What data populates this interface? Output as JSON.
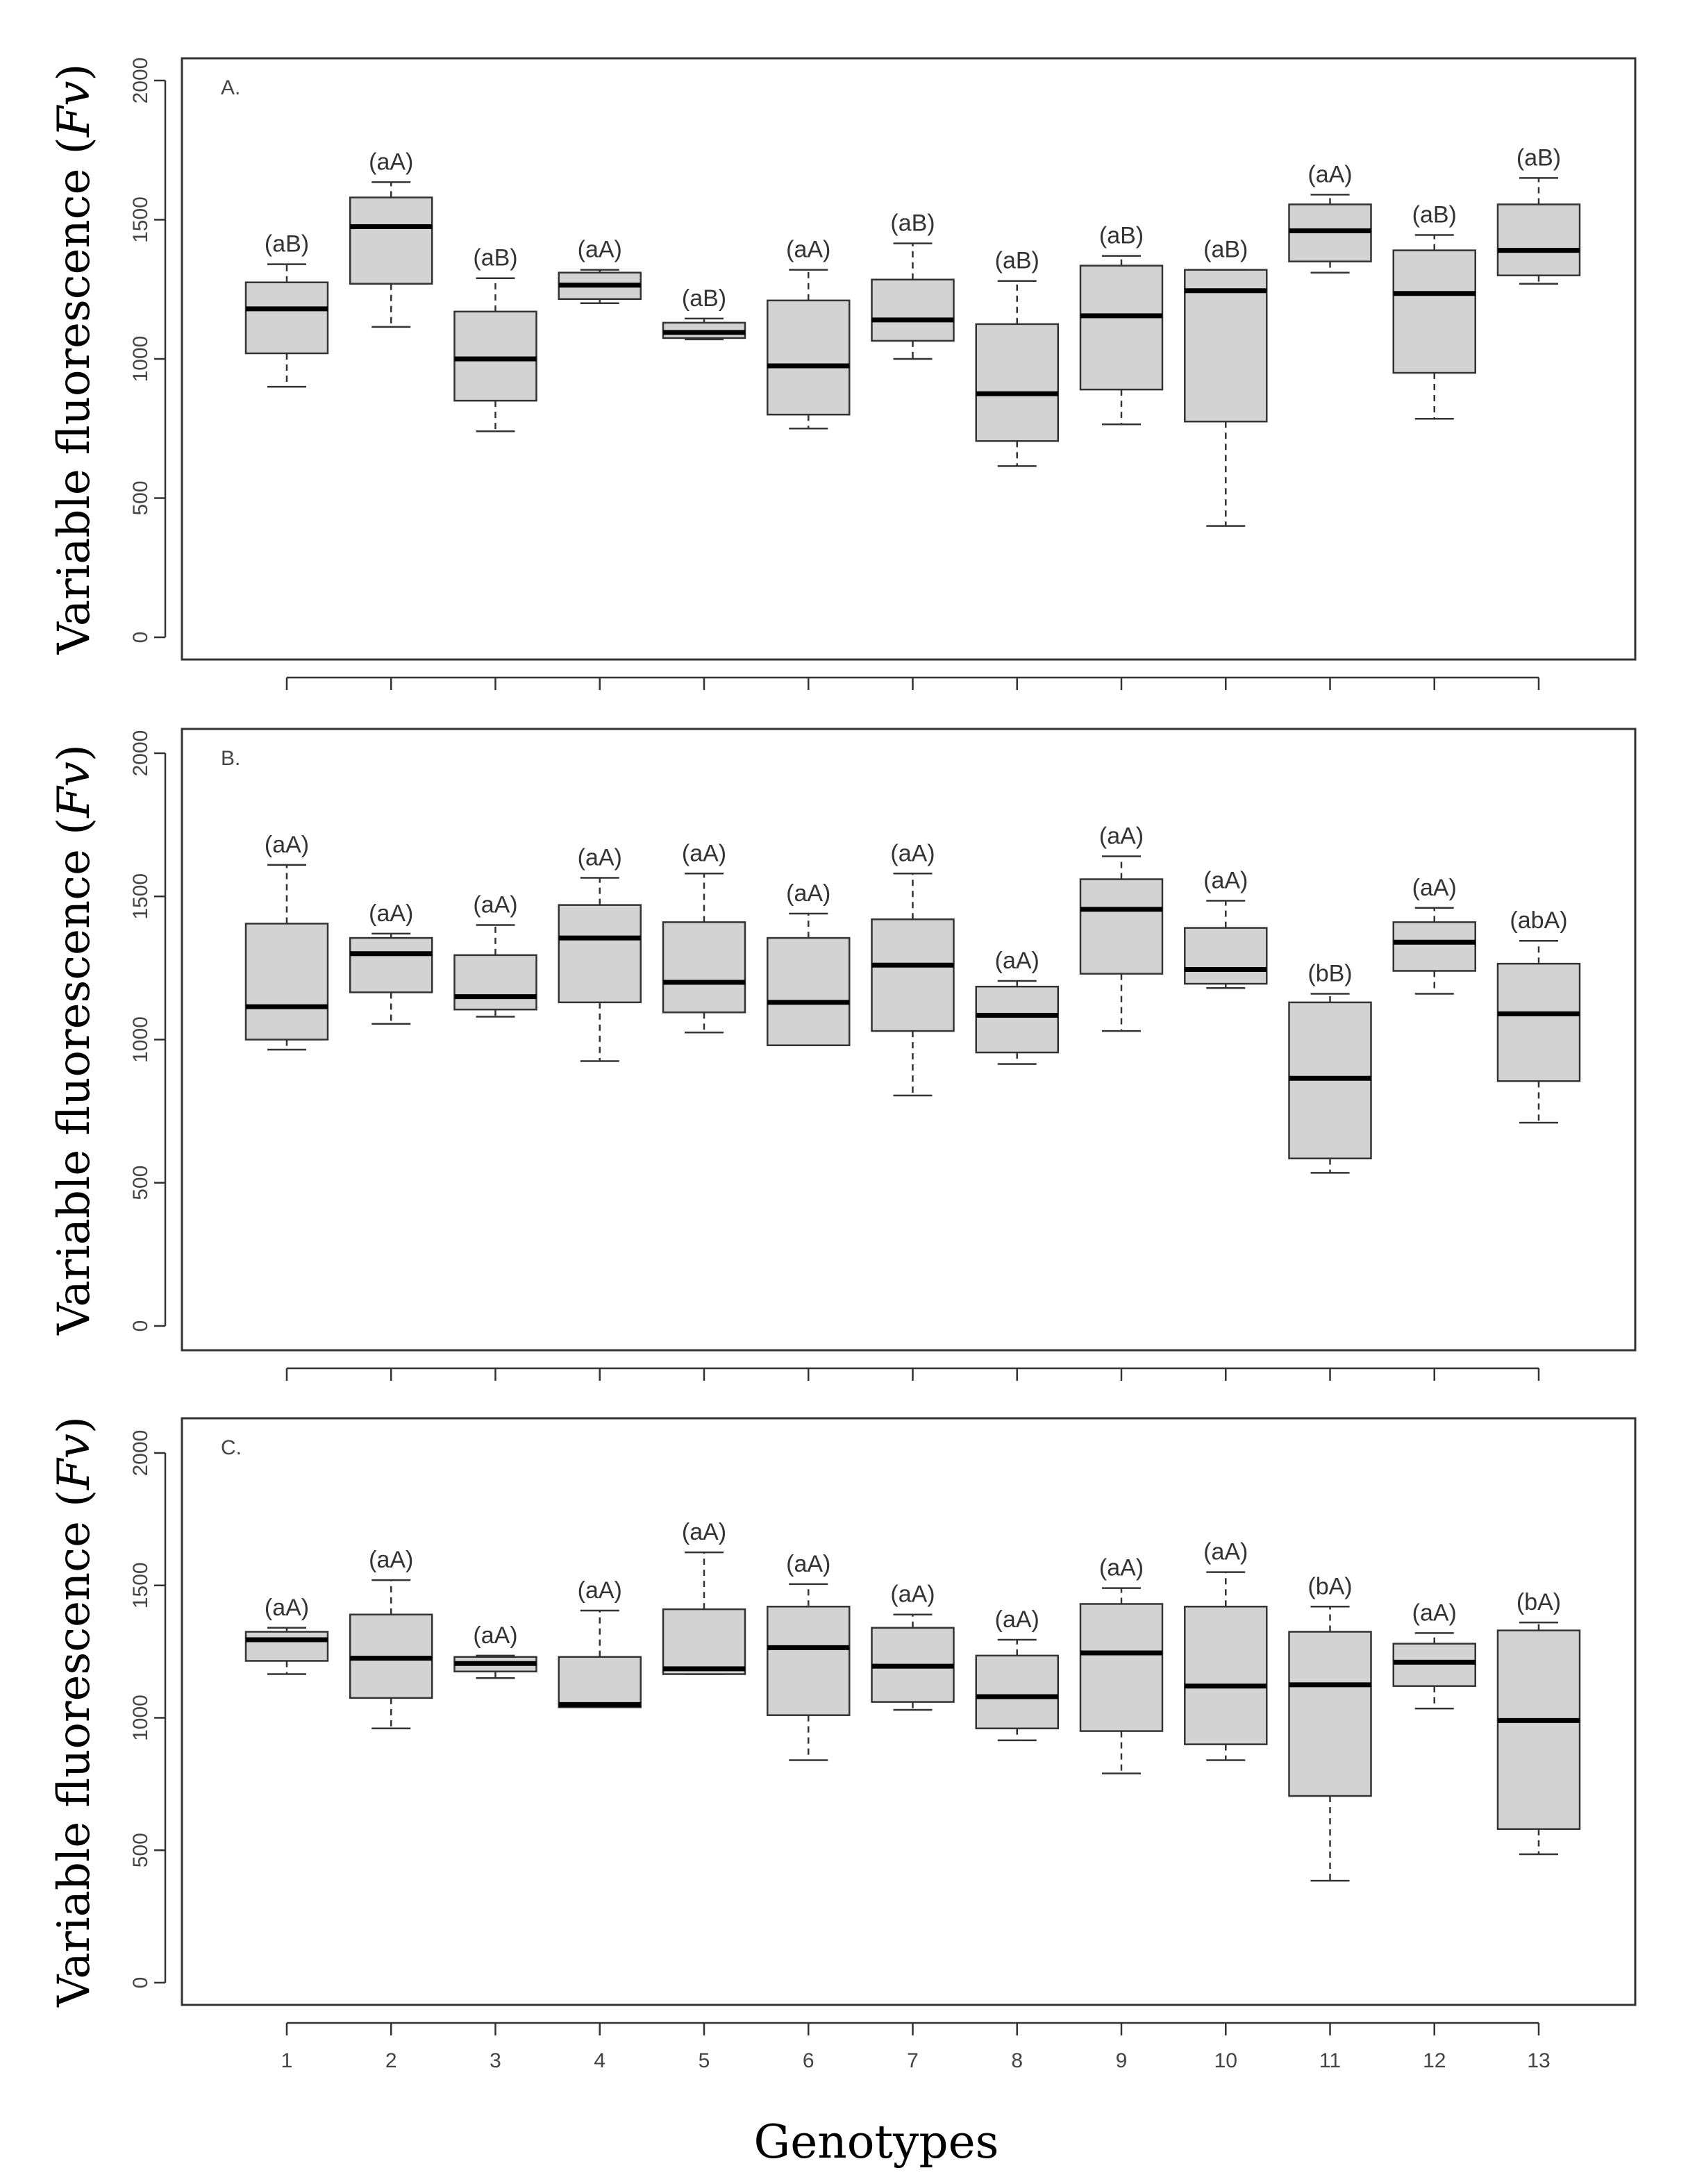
{
  "chart_data": {
    "type": "boxplot",
    "xlabel": "Genotypes",
    "ylabel": "Variable fluorescence",
    "ylabel_symbol": "Fv",
    "ylim": [
      0,
      2000
    ],
    "yticks": [
      0,
      500,
      1000,
      1500,
      2000
    ],
    "categories": [
      "1",
      "2",
      "3",
      "4",
      "5",
      "6",
      "7",
      "8",
      "9",
      "10",
      "11",
      "12",
      "13"
    ],
    "panels": [
      {
        "label": "A.",
        "boxes": [
          {
            "min": 900,
            "q1": 1020,
            "median": 1180,
            "q3": 1275,
            "max": 1340,
            "sig": "(aB)"
          },
          {
            "min": 1115,
            "q1": 1270,
            "median": 1475,
            "q3": 1580,
            "max": 1635,
            "sig": "(aA)"
          },
          {
            "min": 740,
            "q1": 850,
            "median": 1000,
            "q3": 1170,
            "max": 1290,
            "sig": "(aB)"
          },
          {
            "min": 1200,
            "q1": 1215,
            "median": 1265,
            "q3": 1310,
            "max": 1320,
            "sig": "(aA)"
          },
          {
            "min": 1070,
            "q1": 1075,
            "median": 1095,
            "q3": 1130,
            "max": 1145,
            "sig": "(aB)"
          },
          {
            "min": 750,
            "q1": 800,
            "median": 975,
            "q3": 1210,
            "max": 1320,
            "sig": "(aA)"
          },
          {
            "min": 1000,
            "q1": 1065,
            "median": 1140,
            "q3": 1285,
            "max": 1415,
            "sig": "(aB)"
          },
          {
            "min": 615,
            "q1": 705,
            "median": 875,
            "q3": 1125,
            "max": 1280,
            "sig": "(aB)"
          },
          {
            "min": 765,
            "q1": 890,
            "median": 1155,
            "q3": 1335,
            "max": 1370,
            "sig": "(aB)"
          },
          {
            "min": 400,
            "q1": 775,
            "median": 1245,
            "q3": 1320,
            "max": 1320,
            "sig": "(aB)"
          },
          {
            "min": 1310,
            "q1": 1350,
            "median": 1460,
            "q3": 1555,
            "max": 1590,
            "sig": "(aA)"
          },
          {
            "min": 785,
            "q1": 950,
            "median": 1235,
            "q3": 1390,
            "max": 1445,
            "sig": "(aB)"
          },
          {
            "min": 1270,
            "q1": 1300,
            "median": 1390,
            "q3": 1555,
            "max": 1650,
            "sig": "(aB)"
          }
        ]
      },
      {
        "label": "B.",
        "boxes": [
          {
            "min": 965,
            "q1": 1000,
            "median": 1115,
            "q3": 1405,
            "max": 1610,
            "sig": "(aA)"
          },
          {
            "min": 1055,
            "q1": 1165,
            "median": 1300,
            "q3": 1355,
            "max": 1370,
            "sig": "(aA)"
          },
          {
            "min": 1080,
            "q1": 1105,
            "median": 1150,
            "q3": 1295,
            "max": 1400,
            "sig": "(aA)"
          },
          {
            "min": 925,
            "q1": 1130,
            "median": 1355,
            "q3": 1470,
            "max": 1565,
            "sig": "(aA)"
          },
          {
            "min": 1025,
            "q1": 1095,
            "median": 1200,
            "q3": 1410,
            "max": 1580,
            "sig": "(aA)"
          },
          {
            "min": 980,
            "q1": 980,
            "median": 1130,
            "q3": 1355,
            "max": 1440,
            "sig": "(aA)"
          },
          {
            "min": 805,
            "q1": 1030,
            "median": 1260,
            "q3": 1420,
            "max": 1580,
            "sig": "(aA)"
          },
          {
            "min": 915,
            "q1": 955,
            "median": 1085,
            "q3": 1185,
            "max": 1205,
            "sig": "(aA)"
          },
          {
            "min": 1030,
            "q1": 1230,
            "median": 1455,
            "q3": 1560,
            "max": 1640,
            "sig": "(aA)"
          },
          {
            "min": 1180,
            "q1": 1195,
            "median": 1245,
            "q3": 1390,
            "max": 1485,
            "sig": "(aA)"
          },
          {
            "min": 535,
            "q1": 585,
            "median": 865,
            "q3": 1130,
            "max": 1160,
            "sig": "(bB)"
          },
          {
            "min": 1160,
            "q1": 1240,
            "median": 1340,
            "q3": 1410,
            "max": 1460,
            "sig": "(aA)"
          },
          {
            "min": 710,
            "q1": 855,
            "median": 1090,
            "q3": 1265,
            "max": 1345,
            "sig": "(abA)"
          }
        ]
      },
      {
        "label": "C.",
        "boxes": [
          {
            "min": 1165,
            "q1": 1215,
            "median": 1295,
            "q3": 1325,
            "max": 1340,
            "sig": "(aA)"
          },
          {
            "min": 960,
            "q1": 1075,
            "median": 1225,
            "q3": 1390,
            "max": 1520,
            "sig": "(aA)"
          },
          {
            "min": 1150,
            "q1": 1175,
            "median": 1205,
            "q3": 1230,
            "max": 1235,
            "sig": "(aA)"
          },
          {
            "min": 1040,
            "q1": 1040,
            "median": 1050,
            "q3": 1230,
            "max": 1405,
            "sig": "(aA)"
          },
          {
            "min": 1165,
            "q1": 1165,
            "median": 1185,
            "q3": 1410,
            "max": 1625,
            "sig": "(aA)"
          },
          {
            "min": 840,
            "q1": 1010,
            "median": 1265,
            "q3": 1420,
            "max": 1505,
            "sig": "(aA)"
          },
          {
            "min": 1030,
            "q1": 1060,
            "median": 1195,
            "q3": 1340,
            "max": 1390,
            "sig": "(aA)"
          },
          {
            "min": 915,
            "q1": 960,
            "median": 1080,
            "q3": 1235,
            "max": 1295,
            "sig": "(aA)"
          },
          {
            "min": 790,
            "q1": 950,
            "median": 1245,
            "q3": 1430,
            "max": 1490,
            "sig": "(aA)"
          },
          {
            "min": 840,
            "q1": 900,
            "median": 1120,
            "q3": 1420,
            "max": 1550,
            "sig": "(aA)"
          },
          {
            "min": 385,
            "q1": 705,
            "median": 1125,
            "q3": 1325,
            "max": 1420,
            "sig": "(bA)"
          },
          {
            "min": 1035,
            "q1": 1120,
            "median": 1210,
            "q3": 1280,
            "max": 1320,
            "sig": "(aA)"
          },
          {
            "min": 485,
            "q1": 580,
            "median": 990,
            "q3": 1330,
            "max": 1360,
            "sig": "(bA)"
          }
        ]
      }
    ]
  }
}
